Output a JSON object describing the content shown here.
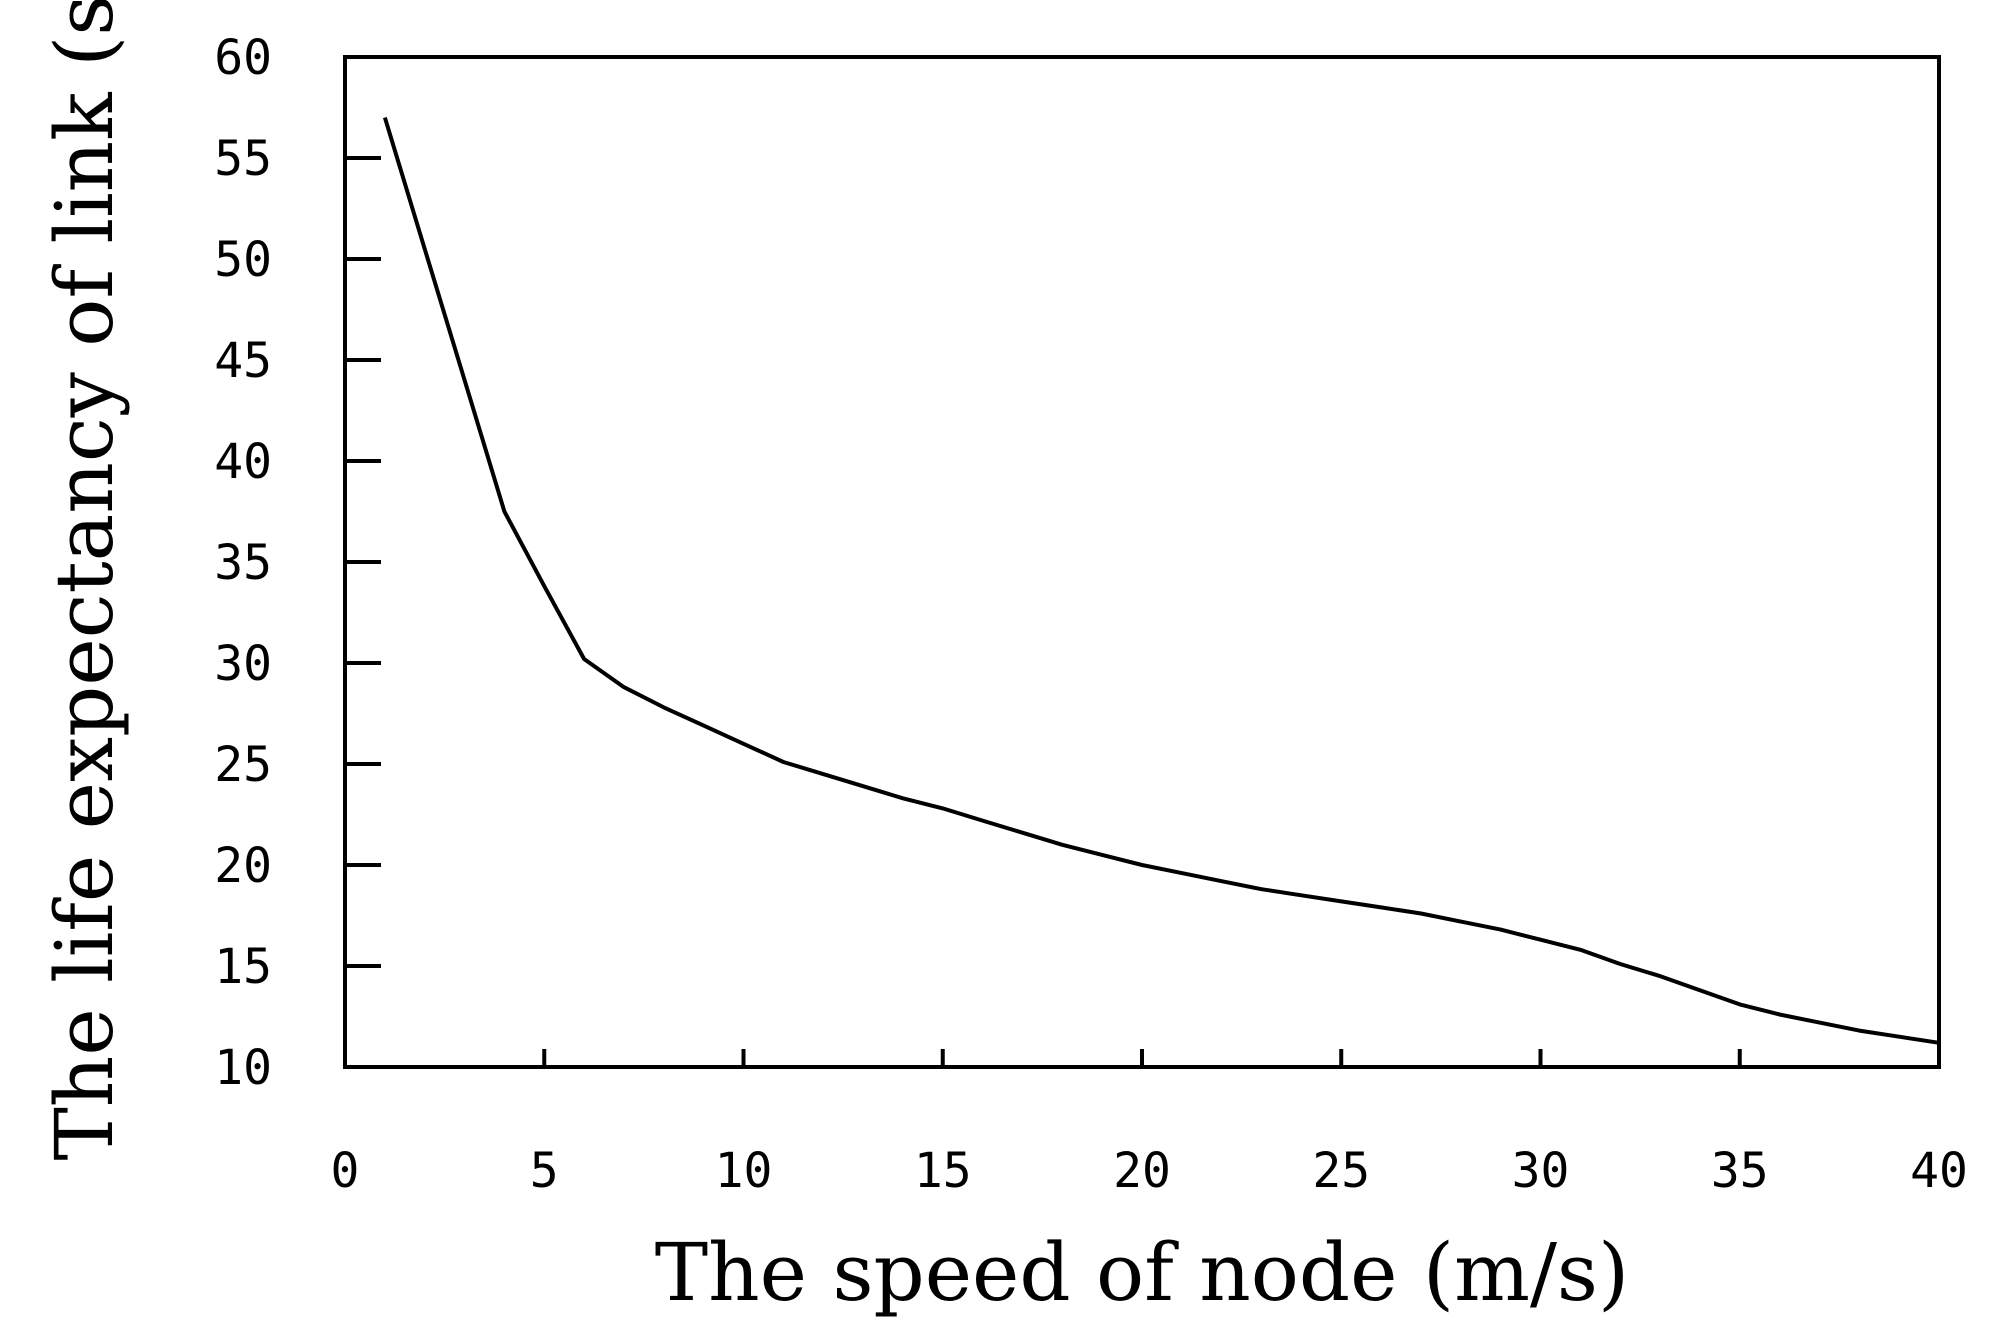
{
  "chart_data": {
    "type": "line",
    "title": "",
    "xlabel": "The speed of node (m/s)",
    "ylabel": "The life expectancy of link (s)",
    "xlim": [
      0,
      40
    ],
    "ylim": [
      10,
      60
    ],
    "xticks": [
      0,
      5,
      10,
      15,
      20,
      25,
      30,
      35,
      40
    ],
    "yticks": [
      10,
      15,
      20,
      25,
      30,
      35,
      40,
      45,
      50,
      55,
      60
    ],
    "grid": false,
    "legend": "none",
    "series": [
      {
        "x": [
          1,
          2,
          3,
          4,
          5,
          6,
          7,
          8,
          9,
          10,
          11,
          12,
          13,
          14,
          15,
          16,
          17,
          18,
          19,
          20,
          21,
          22,
          23,
          24,
          25,
          26,
          27,
          28,
          29,
          30,
          31,
          32,
          33,
          34,
          35,
          36,
          37,
          38,
          39,
          40
        ],
        "y": [
          57,
          50.5,
          44,
          37.5,
          33.8,
          30.2,
          28.8,
          27.8,
          26.9,
          26.0,
          25.1,
          24.5,
          23.9,
          23.3,
          22.8,
          22.2,
          21.6,
          21.0,
          20.5,
          20.0,
          19.6,
          19.2,
          18.8,
          18.5,
          18.2,
          17.9,
          17.6,
          17.2,
          16.8,
          16.3,
          15.8,
          15.1,
          14.5,
          13.8,
          13.1,
          12.6,
          12.2,
          11.8,
          11.5,
          11.2
        ],
        "color": "#000000"
      }
    ]
  }
}
